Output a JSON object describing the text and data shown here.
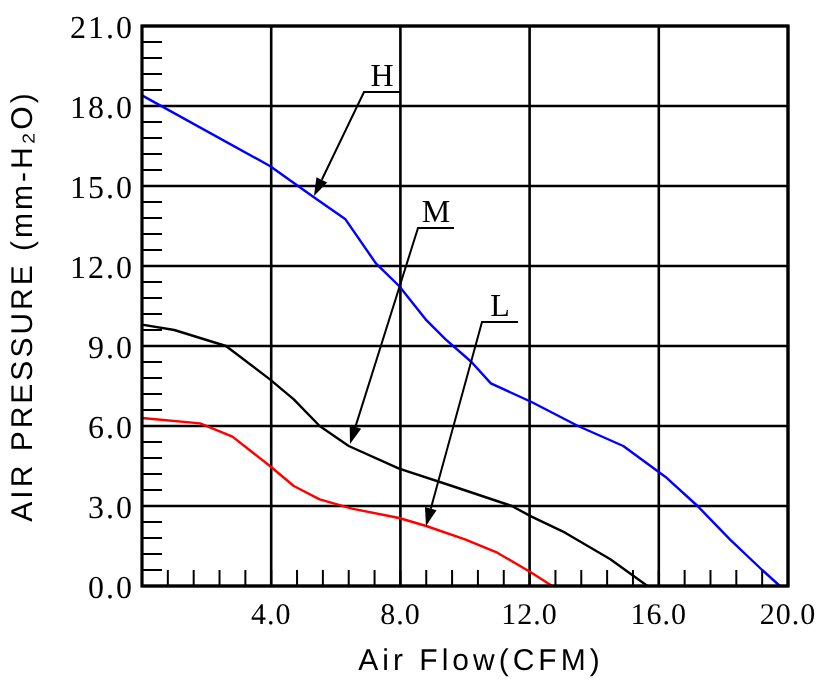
{
  "chart_data": {
    "type": "line",
    "xlabel": "Air Flow(CFM)",
    "ylabel": "AIR PRESSURE (mm-H₂O)",
    "xlim": [
      0,
      20
    ],
    "ylim": [
      0,
      21
    ],
    "grid": true,
    "marker": "none",
    "line_style": "solid",
    "xticks": [
      {
        "value": 0,
        "label": null
      },
      {
        "value": 0.8,
        "label": null
      },
      {
        "value": 1.6,
        "label": null
      },
      {
        "value": 2.4,
        "label": null
      },
      {
        "value": 3.2,
        "label": null
      },
      {
        "value": 4,
        "label": "4.0"
      },
      {
        "value": 4.8,
        "label": null
      },
      {
        "value": 5.6,
        "label": null
      },
      {
        "value": 6.4,
        "label": null
      },
      {
        "value": 7.2,
        "label": null
      },
      {
        "value": 8,
        "label": "8.0"
      },
      {
        "value": 8.8,
        "label": null
      },
      {
        "value": 9.6,
        "label": null
      },
      {
        "value": 10.4,
        "label": null
      },
      {
        "value": 11.2,
        "label": null
      },
      {
        "value": 12,
        "label": "12.0"
      },
      {
        "value": 12.8,
        "label": null
      },
      {
        "value": 13.6,
        "label": null
      },
      {
        "value": 14.4,
        "label": null
      },
      {
        "value": 15.2,
        "label": null
      },
      {
        "value": 16,
        "label": "16.0"
      },
      {
        "value": 16.8,
        "label": null
      },
      {
        "value": 17.6,
        "label": null
      },
      {
        "value": 18.4,
        "label": null
      },
      {
        "value": 19.2,
        "label": null
      },
      {
        "value": 20,
        "label": "20.0"
      }
    ],
    "yticks": [
      {
        "value": 0,
        "label": "0.0"
      },
      {
        "value": 0.6,
        "label": null
      },
      {
        "value": 1.2,
        "label": null
      },
      {
        "value": 1.8,
        "label": null
      },
      {
        "value": 2.4,
        "label": null
      },
      {
        "value": 3,
        "label": "3.0"
      },
      {
        "value": 3.6,
        "label": null
      },
      {
        "value": 4.2,
        "label": null
      },
      {
        "value": 4.8,
        "label": null
      },
      {
        "value": 5.4,
        "label": null
      },
      {
        "value": 6,
        "label": "6.0"
      },
      {
        "value": 6.6,
        "label": null
      },
      {
        "value": 7.2,
        "label": null
      },
      {
        "value": 7.8,
        "label": null
      },
      {
        "value": 8.4,
        "label": null
      },
      {
        "value": 9,
        "label": "9.0"
      },
      {
        "value": 9.6,
        "label": null
      },
      {
        "value": 10.2,
        "label": null
      },
      {
        "value": 10.8,
        "label": null
      },
      {
        "value": 11.4,
        "label": null
      },
      {
        "value": 12,
        "label": "12.0"
      },
      {
        "value": 12.6,
        "label": null
      },
      {
        "value": 13.2,
        "label": null
      },
      {
        "value": 13.8,
        "label": null
      },
      {
        "value": 14.4,
        "label": null
      },
      {
        "value": 15,
        "label": "15.0"
      },
      {
        "value": 15.6,
        "label": null
      },
      {
        "value": 16.2,
        "label": null
      },
      {
        "value": 16.8,
        "label": null
      },
      {
        "value": 17.4,
        "label": null
      },
      {
        "value": 18,
        "label": "18.0"
      },
      {
        "value": 18.6,
        "label": null
      },
      {
        "value": 19.2,
        "label": null
      },
      {
        "value": 19.8,
        "label": null
      },
      {
        "value": 20.4,
        "label": null
      },
      {
        "value": 21,
        "label": "21.0"
      }
    ],
    "series": [
      {
        "color": "#0000ff",
        "x": [
          0,
          3.96,
          5.3,
          6.3,
          7.24,
          7.96,
          8.78,
          9.4,
          10.2,
          10.8,
          12.06,
          13.5,
          14.9,
          16.2,
          17.2,
          18.2,
          19.2,
          19.75
        ],
        "values": [
          18.4,
          15.75,
          14.6,
          13.75,
          12.1,
          11.25,
          10,
          9.25,
          8.4,
          7.6,
          6.9,
          6,
          5.25,
          4.1,
          3,
          1.75,
          0.6,
          0
        ]
      },
      {
        "color": "#000000",
        "x": [
          0,
          1,
          2.6,
          3.96,
          4.7,
          5.5,
          6.4,
          7.96,
          9.6,
          11.45,
          12.06,
          13.1,
          14.5,
          15.65
        ],
        "values": [
          9.8,
          9.6,
          9,
          7.75,
          7,
          6,
          5.25,
          4.4,
          3.75,
          3,
          2.6,
          2,
          1,
          0
        ]
      },
      {
        "color": "#ff0000",
        "x": [
          0,
          1.8,
          2.8,
          3.96,
          4.7,
          5.5,
          6.5,
          7.96,
          8.8,
          10,
          11,
          12.06,
          12.7
        ],
        "values": [
          6.3,
          6.1,
          5.6,
          4.5,
          3.75,
          3.25,
          2.9,
          2.55,
          2.25,
          1.75,
          1.25,
          0.5,
          0
        ]
      }
    ],
    "annotations": [
      "H",
      "M",
      "L"
    ]
  }
}
